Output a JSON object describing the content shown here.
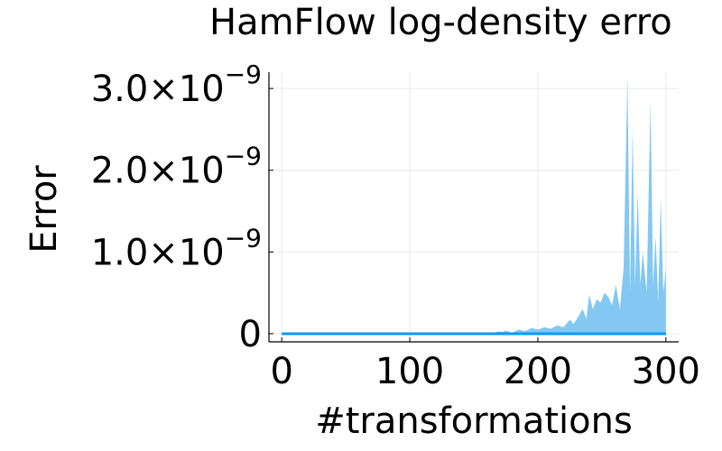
{
  "chart_data": {
    "type": "area",
    "title": "HamFlow log-density erro",
    "xlabel": "#transformations",
    "ylabel": "Error",
    "xlim": [
      -10,
      310
    ],
    "ylim": [
      -1e-10,
      3.2e-09
    ],
    "grid": true,
    "legend": "none",
    "x_ticks": [
      {
        "value": 0,
        "label": "0"
      },
      {
        "value": 100,
        "label": "100"
      },
      {
        "value": 200,
        "label": "200"
      },
      {
        "value": 300,
        "label": "300"
      }
    ],
    "y_ticks": [
      {
        "value": 0,
        "label": "0",
        "mantissa": "",
        "exponent": ""
      },
      {
        "value": 1e-09,
        "label": "1.0×10−9",
        "mantissa": "1.0×10",
        "exponent": "−9"
      },
      {
        "value": 2e-09,
        "label": "2.0×10−9",
        "mantissa": "2.0×10",
        "exponent": "−9"
      },
      {
        "value": 3e-09,
        "label": "3.0×10−9",
        "mantissa": "3.0×10",
        "exponent": "−9"
      }
    ],
    "series": [
      {
        "color": "#009af9",
        "fill_color": "#7cc4f2",
        "x": [
          0,
          150,
          165,
          170,
          172,
          175,
          180,
          185,
          190,
          195,
          200,
          205,
          210,
          215,
          220,
          225,
          228,
          232,
          235,
          238,
          240,
          243,
          246,
          249,
          252,
          255,
          258,
          261,
          264,
          267,
          270,
          272,
          274,
          276,
          278,
          280,
          282,
          285,
          288,
          290,
          292,
          294,
          296,
          298,
          300
        ],
        "y": [
          0,
          0,
          1e-11,
          3e-11,
          2e-11,
          4e-11,
          1e-11,
          5e-11,
          3e-11,
          7e-11,
          5e-11,
          8e-11,
          6e-11,
          1e-10,
          8e-11,
          1.7e-10,
          1.2e-10,
          2.2e-10,
          3e-10,
          1.8e-10,
          4.8e-10,
          3e-10,
          4.2e-10,
          3.8e-10,
          5e-10,
          4.5e-10,
          3.5e-10,
          6e-10,
          3e-10,
          8e-10,
          3.15e-09,
          5e-10,
          2.5e-09,
          6e-10,
          1.75e-09,
          6e-10,
          1e-09,
          5e-10,
          2.85e-09,
          6e-10,
          1.2e-09,
          4e-10,
          1.65e-09,
          5e-10,
          8e-10
        ]
      }
    ]
  }
}
